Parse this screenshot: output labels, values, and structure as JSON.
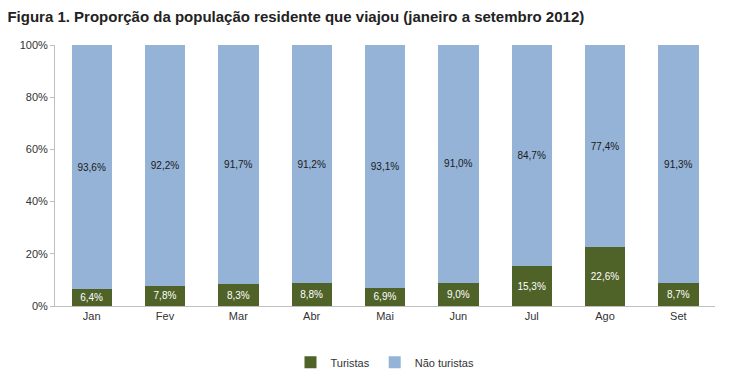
{
  "chart_data": {
    "type": "bar",
    "title": "Figura 1. Proporção da população residente que viajou (janeiro a setembro 2012)",
    "categories": [
      "Jan",
      "Fev",
      "Mar",
      "Abr",
      "Mai",
      "Jun",
      "Jul",
      "Ago",
      "Set"
    ],
    "series": [
      {
        "name": "Turistas",
        "color": "#4f6228",
        "values": [
          6.4,
          7.8,
          8.3,
          8.8,
          6.9,
          9.0,
          15.3,
          22.6,
          8.7
        ],
        "value_labels": [
          "6,4%",
          "7,8%",
          "8,3%",
          "8,8%",
          "6,9%",
          "9,0%",
          "15,3%",
          "22,6%",
          "8,7%"
        ]
      },
      {
        "name": "Não turistas",
        "color": "#95b3d7",
        "values": [
          93.6,
          92.2,
          91.7,
          91.2,
          93.1,
          91.0,
          84.7,
          77.4,
          91.3
        ],
        "value_labels": [
          "93,6%",
          "92,2%",
          "91,7%",
          "91,2%",
          "93,1%",
          "91,0%",
          "84,7%",
          "77,4%",
          "91,3%"
        ]
      }
    ],
    "ylim": [
      0,
      100
    ],
    "yticks": [
      {
        "value": 0,
        "label": "0%"
      },
      {
        "value": 20,
        "label": "20%"
      },
      {
        "value": 40,
        "label": "40%"
      },
      {
        "value": 60,
        "label": "60%"
      },
      {
        "value": 80,
        "label": "80%"
      },
      {
        "value": 100,
        "label": "100%"
      }
    ],
    "stacked": true,
    "data_labels": true,
    "grid": false,
    "legend": "bottom"
  }
}
